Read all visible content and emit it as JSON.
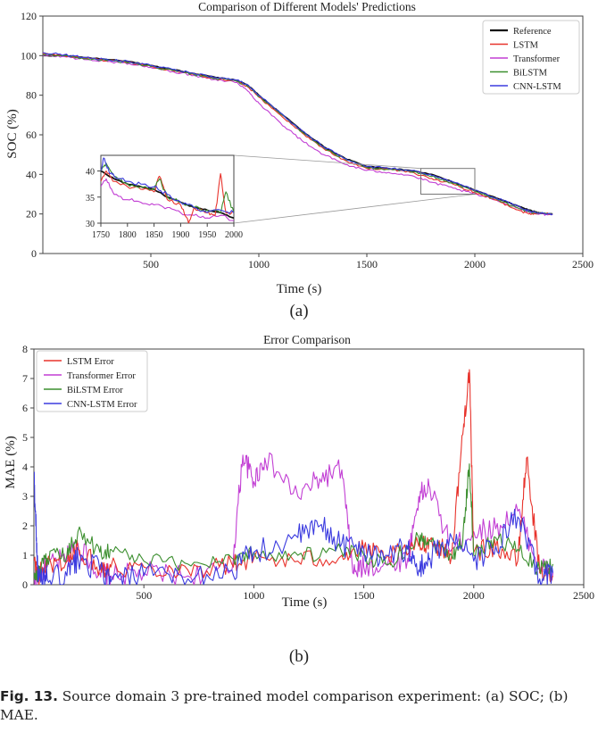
{
  "figure": {
    "panel_a_label": "(a)",
    "panel_b_label": "(b)",
    "caption_prefix": "Fig. 13.",
    "caption_text": " Source domain 3 pre-trained model comparison experiment: (a) SOC; (b) MAE."
  },
  "colors": {
    "Reference": "#111111",
    "LSTM": "#e8332c",
    "Transformer": "#c23fd4",
    "BiLSTM": "#3c8f2f",
    "CNN-LSTM": "#3b3bdf"
  },
  "chart_data": [
    {
      "type": "line",
      "title": "Comparison of Different Models' Predictions",
      "xlabel": "Time (s)",
      "ylabel": "SOC (%)",
      "xlim": [
        0,
        2500
      ],
      "ylim": [
        0,
        120
      ],
      "xticks": [
        500,
        1000,
        1500,
        2000,
        2500
      ],
      "yticks": [
        0,
        20,
        40,
        60,
        80,
        100,
        120
      ],
      "legend_position": "upper right",
      "grid": false,
      "series": [
        {
          "name": "Reference",
          "x": [
            0,
            100,
            200,
            300,
            400,
            500,
            600,
            700,
            800,
            900,
            950,
            1000,
            1100,
            1200,
            1300,
            1400,
            1500,
            1600,
            1700,
            1800,
            1900,
            2000,
            2100,
            2200,
            2250,
            2300,
            2360
          ],
          "y": [
            100,
            100,
            99,
            98,
            97,
            95,
            93,
            91,
            89,
            87.5,
            85,
            80,
            71,
            62,
            54,
            48,
            44,
            43,
            42,
            40,
            36,
            32,
            28,
            24,
            22,
            20.5,
            20
          ]
        },
        {
          "name": "LSTM",
          "x": [
            0,
            100,
            200,
            300,
            400,
            500,
            600,
            700,
            800,
            900,
            950,
            1000,
            1100,
            1200,
            1300,
            1400,
            1500,
            1600,
            1700,
            1800,
            1900,
            2000,
            2100,
            2200,
            2250,
            2300,
            2360
          ],
          "y": [
            101,
            100,
            98.5,
            97.5,
            96.5,
            94.5,
            92.5,
            90.5,
            88.5,
            87,
            84,
            79,
            70,
            61,
            53,
            47,
            43,
            42.5,
            41,
            38,
            35,
            31,
            27,
            22,
            20,
            20.5,
            20
          ]
        },
        {
          "name": "Transformer",
          "x": [
            0,
            100,
            200,
            300,
            400,
            500,
            600,
            700,
            800,
            900,
            950,
            1000,
            1100,
            1200,
            1300,
            1400,
            1500,
            1600,
            1700,
            1800,
            1900,
            2000,
            2100,
            2200,
            2250,
            2300,
            2360
          ],
          "y": [
            100,
            99.5,
            98,
            97,
            96,
            94,
            92,
            90,
            88,
            86.5,
            82,
            76,
            66,
            57,
            50,
            45,
            42,
            41,
            39.5,
            36,
            33,
            30,
            27,
            23,
            21,
            20,
            19.5
          ]
        },
        {
          "name": "BiLSTM",
          "x": [
            0,
            100,
            200,
            300,
            400,
            500,
            600,
            700,
            800,
            900,
            950,
            1000,
            1100,
            1200,
            1300,
            1400,
            1500,
            1600,
            1700,
            1800,
            1900,
            2000,
            2100,
            2200,
            2250,
            2300,
            2360
          ],
          "y": [
            100.5,
            100,
            98.5,
            97.5,
            96.5,
            94.5,
            92.5,
            90.5,
            88.5,
            87,
            84.5,
            79.5,
            70.5,
            61.5,
            53.5,
            47.5,
            43.5,
            42.5,
            41.5,
            39,
            35.5,
            31.5,
            27.5,
            23,
            21,
            20.5,
            20
          ]
        },
        {
          "name": "CNN-LSTM",
          "x": [
            0,
            100,
            200,
            300,
            400,
            500,
            600,
            700,
            800,
            900,
            950,
            1000,
            1100,
            1200,
            1300,
            1400,
            1500,
            1600,
            1700,
            1800,
            1900,
            2000,
            2100,
            2200,
            2250,
            2300,
            2360
          ],
          "y": [
            101.5,
            100.5,
            99,
            98,
            97,
            95,
            93,
            91,
            89,
            87.5,
            85,
            80,
            71,
            62,
            54,
            48,
            44,
            43,
            42,
            39.5,
            36,
            32,
            28,
            24,
            21.5,
            20.5,
            20
          ]
        }
      ],
      "inset": {
        "xlim": [
          1750,
          2000
        ],
        "ylim": [
          30,
          43
        ],
        "xticks": [
          1750,
          1800,
          1850,
          1900,
          1950,
          2000
        ],
        "yticks": [
          30,
          35,
          40
        ],
        "series": [
          {
            "name": "Reference",
            "x": [
              1750,
              1775,
              1800,
              1825,
              1850,
              1875,
              1900,
              1925,
              1950,
              1975,
              2000
            ],
            "y": [
              40,
              38.5,
              37.5,
              37,
              36.5,
              35,
              34,
              33,
              32.5,
              32,
              31
            ]
          },
          {
            "name": "LSTM",
            "x": [
              1750,
              1760,
              1775,
              1800,
              1825,
              1850,
              1860,
              1875,
              1900,
              1915,
              1925,
              1950,
              1965,
              1975,
              1985,
              2000
            ],
            "y": [
              38,
              40,
              38,
              37,
              36.5,
              36,
              39,
              34.5,
              33.5,
              30,
              33,
              32,
              31.5,
              39.5,
              32,
              32
            ]
          },
          {
            "name": "Transformer",
            "x": [
              1750,
              1760,
              1775,
              1800,
              1825,
              1850,
              1875,
              1900,
              1925,
              1950,
              1975,
              2000
            ],
            "y": [
              37,
              38.5,
              35.5,
              34.5,
              34,
              33.5,
              33,
              32,
              31.5,
              31,
              31.5,
              30.5
            ]
          },
          {
            "name": "BiLSTM",
            "x": [
              1750,
              1760,
              1775,
              1800,
              1825,
              1850,
              1860,
              1875,
              1900,
              1925,
              1950,
              1975,
              1985,
              2000
            ],
            "y": [
              40,
              41.5,
              39,
              37.5,
              37,
              36.5,
              38.5,
              35,
              34,
              33,
              32.5,
              32,
              36,
              32
            ]
          },
          {
            "name": "CNN-LSTM",
            "x": [
              1750,
              1755,
              1765,
              1775,
              1800,
              1825,
              1850,
              1875,
              1900,
              1925,
              1950,
              1975,
              2000
            ],
            "y": [
              40,
              42.5,
              40,
              39,
              38,
              37.5,
              37,
              35.5,
              34,
              33,
              32,
              32.5,
              32
            ]
          }
        ]
      }
    },
    {
      "type": "line",
      "title": "Error Comparison",
      "xlabel": "Time (s)",
      "ylabel": "MAE (%)",
      "xlim": [
        0,
        2500
      ],
      "ylim": [
        0,
        8
      ],
      "xticks": [
        500,
        1000,
        1500,
        2000,
        2500
      ],
      "yticks": [
        0,
        1,
        2,
        3,
        4,
        5,
        6,
        7,
        8
      ],
      "legend_position": "upper left",
      "grid": false,
      "series": [
        {
          "name": "LSTM Error",
          "x": [
            0,
            20,
            60,
            150,
            200,
            300,
            350,
            500,
            700,
            900,
            1000,
            1200,
            1400,
            1500,
            1600,
            1750,
            1800,
            1900,
            1950,
            1980,
            2000,
            2100,
            2200,
            2240,
            2300,
            2360
          ],
          "y": [
            0.8,
            0.3,
            0.7,
            0.8,
            1.2,
            0.6,
            0.6,
            0.6,
            0.5,
            0.7,
            0.9,
            0.8,
            1.0,
            1.2,
            0.9,
            1.3,
            1.5,
            1.0,
            5.1,
            7.3,
            1.1,
            1.3,
            0.8,
            4.3,
            0.4,
            0.3
          ]
        },
        {
          "name": "Transformer Error",
          "x": [
            0,
            20,
            60,
            150,
            200,
            300,
            350,
            500,
            700,
            900,
            950,
            1000,
            1050,
            1200,
            1300,
            1400,
            1450,
            1500,
            1600,
            1700,
            1750,
            1800,
            1900,
            2000,
            2100,
            2200,
            2300,
            2360
          ],
          "y": [
            0.2,
            0.3,
            0.6,
            0.9,
            1.4,
            0.4,
            0.3,
            0.4,
            0.3,
            0.5,
            4.4,
            3.5,
            4.3,
            3.0,
            3.6,
            3.9,
            0.4,
            0.6,
            0.7,
            0.9,
            3.0,
            3.3,
            1.2,
            1.8,
            1.9,
            2.5,
            0.6,
            0.4
          ]
        },
        {
          "name": "BiLSTM Error",
          "x": [
            0,
            20,
            60,
            150,
            200,
            300,
            350,
            500,
            700,
            900,
            1000,
            1200,
            1400,
            1500,
            1600,
            1750,
            1800,
            1900,
            1950,
            1980,
            2000,
            2100,
            2200,
            2300,
            2360
          ],
          "y": [
            0.2,
            0.4,
            0.9,
            1.0,
            1.8,
            1.1,
            1.2,
            0.8,
            0.7,
            0.9,
            1.1,
            1.0,
            1.1,
            1.0,
            0.7,
            1.6,
            1.5,
            1.0,
            1.5,
            4.1,
            1.0,
            1.6,
            1.2,
            0.5,
            0.7
          ]
        },
        {
          "name": "CNN-LSTM Error",
          "x": [
            0,
            10,
            20,
            60,
            150,
            200,
            300,
            350,
            500,
            700,
            900,
            1000,
            1200,
            1300,
            1400,
            1500,
            1600,
            1700,
            1750,
            1800,
            1900,
            2000,
            2100,
            2200,
            2300,
            2360
          ],
          "y": [
            3.7,
            1.9,
            0.1,
            0.2,
            0.3,
            0.9,
            0.5,
            0.1,
            0.3,
            0.2,
            0.5,
            1.1,
            1.6,
            2.0,
            1.4,
            1.2,
            1.0,
            1.2,
            0.5,
            0.9,
            1.6,
            0.8,
            1.3,
            2.3,
            0.2,
            0.4
          ]
        }
      ]
    }
  ]
}
